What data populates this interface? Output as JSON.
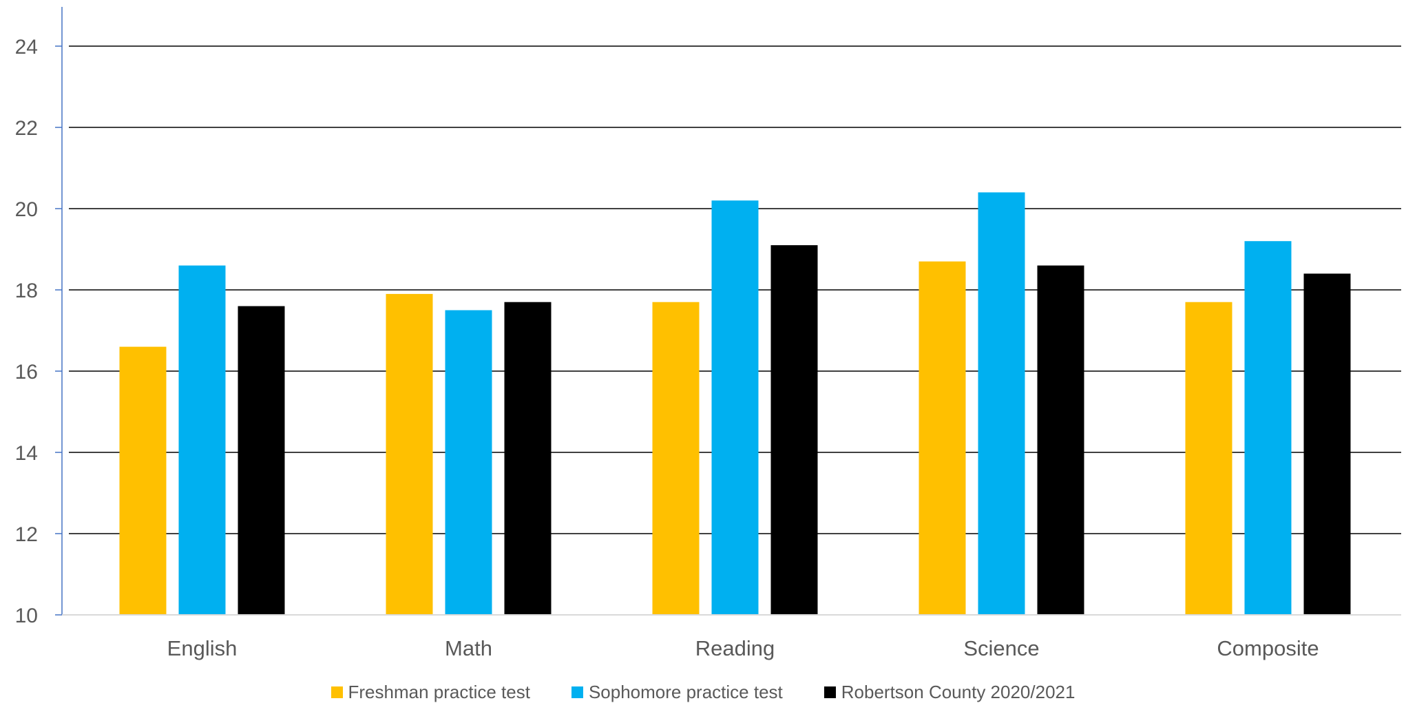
{
  "chart_data": {
    "type": "bar",
    "title": "",
    "xlabel": "",
    "ylabel": "",
    "categories": [
      "English",
      "Math",
      "Reading",
      "Science",
      "Composite"
    ],
    "series": [
      {
        "name": "Freshman practice test",
        "color": "#FFC000",
        "values": [
          16.6,
          17.9,
          17.7,
          18.7,
          17.7
        ]
      },
      {
        "name": "Sophomore practice test",
        "color": "#00B0F0",
        "values": [
          18.6,
          17.5,
          20.2,
          20.4,
          19.2
        ]
      },
      {
        "name": "Robertson County 2020/2021",
        "color": "#000000",
        "values": [
          17.6,
          17.7,
          19.1,
          18.6,
          18.4
        ]
      }
    ],
    "ylim": [
      10,
      24
    ],
    "yticks": [
      "10",
      "12",
      "14",
      "16",
      "18",
      "20",
      "22",
      "24"
    ],
    "grid": true,
    "legend_position": "bottom"
  }
}
